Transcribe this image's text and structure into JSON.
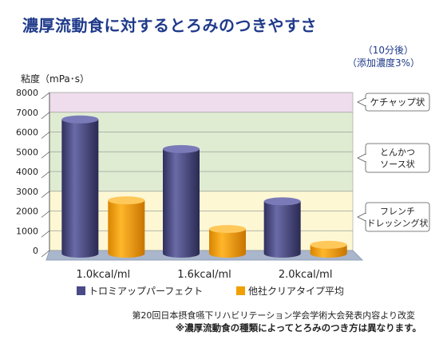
{
  "chart_data": {
    "type": "bar",
    "title": "濃厚流動食に対するとろみのつきやすさ",
    "condition_time": "（10分後）",
    "condition_conc": "（添加濃度3%）",
    "ylabel": "粘度（mPa･s）",
    "ylim": [
      0,
      8000
    ],
    "yticks": [
      0,
      1000,
      2000,
      3000,
      4000,
      5000,
      6000,
      7000,
      8000
    ],
    "categories": [
      "1.0kcal/ml",
      "1.6kcal/ml",
      "2.0kcal/ml"
    ],
    "series": [
      {
        "name": "トロミアップパーフェクト",
        "values": [
          6800,
          5300,
          2650
        ],
        "color": "#4a4a88"
      },
      {
        "name": "他社クリアタイプ平均",
        "values": [
          2700,
          1250,
          450
        ],
        "color": "#f0a000"
      }
    ],
    "bands": [
      {
        "label": "ケチャップ状",
        "from": 7000,
        "to": 8000,
        "color": "#efdcec"
      },
      {
        "label": "とんかつ\nソース状",
        "from": 3000,
        "to": 7000,
        "color": "#e0ecd2"
      },
      {
        "label": "フレンチ\nドレッシング状",
        "from": 0,
        "to": 3000,
        "color": "#fdf7d4"
      }
    ]
  },
  "footnote1": "第20回日本摂食嚥下リハビリテーション学会学術大会発表内容より改変",
  "footnote2": "※濃厚流動食の種類によってとろみのつき方は異なります。"
}
